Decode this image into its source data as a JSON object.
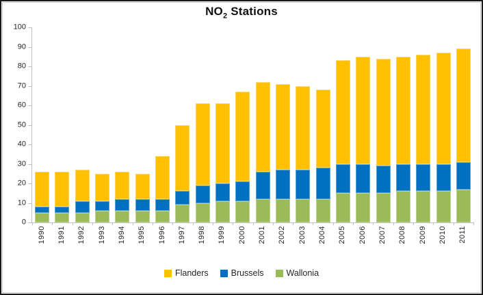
{
  "figure": {
    "title": {
      "base": "NO",
      "sub": "2",
      "rest": " Stations"
    }
  },
  "chart_data": {
    "type": "bar",
    "stacked": true,
    "title": "NO2 Stations",
    "categories": [
      "1990",
      "1991",
      "1992",
      "1993",
      "1994",
      "1995",
      "1996",
      "1997",
      "1998",
      "1999",
      "2000",
      "2001",
      "2002",
      "2003",
      "2004",
      "2005",
      "2006",
      "2007",
      "2008",
      "2009",
      "2010",
      "2011"
    ],
    "series": [
      {
        "name": "Flanders",
        "color": "#FFC000",
        "values": [
          18,
          18,
          16,
          14,
          14,
          13,
          22,
          34,
          42,
          41,
          46,
          46,
          44,
          43,
          40,
          53,
          55,
          55,
          55,
          56,
          57,
          58
        ]
      },
      {
        "name": "Brussels",
        "color": "#0070C0",
        "values": [
          3,
          3,
          6,
          5,
          6,
          6,
          6,
          7,
          9,
          9,
          10,
          14,
          15,
          15,
          16,
          15,
          15,
          14,
          14,
          14,
          14,
          14
        ]
      },
      {
        "name": "Wallonia",
        "color": "#9BBB59",
        "values": [
          5,
          5,
          5,
          6,
          6,
          6,
          6,
          9,
          10,
          11,
          11,
          12,
          12,
          12,
          12,
          15,
          15,
          15,
          16,
          16,
          16,
          17
        ]
      }
    ],
    "totals": [
      26,
      26,
      27,
      25,
      26,
      25,
      34,
      50,
      61,
      61,
      67,
      72,
      71,
      70,
      68,
      83,
      85,
      84,
      85,
      86,
      87,
      89
    ],
    "stack_order_bottom_to_top": [
      "Wallonia",
      "Brussels",
      "Flanders"
    ],
    "y_axis": {
      "min": 0,
      "max": 100,
      "step": 10,
      "ticks": [
        0,
        10,
        20,
        30,
        40,
        50,
        60,
        70,
        80,
        90,
        100
      ]
    },
    "x_label_rotation_deg": 90,
    "grid": false,
    "legend": {
      "position": "bottom",
      "order": [
        "Flanders",
        "Brussels",
        "Wallonia"
      ]
    }
  },
  "style": {
    "colors": {
      "flanders": "#FFC000",
      "brussels": "#0070C0",
      "wallonia": "#9BBB59",
      "axis_line": "#BFBFBF",
      "tick_label": "#262626",
      "outer_border": "#1A1A1A",
      "inner_border": "#C9C9C9",
      "background": "#FFFFFF"
    }
  }
}
